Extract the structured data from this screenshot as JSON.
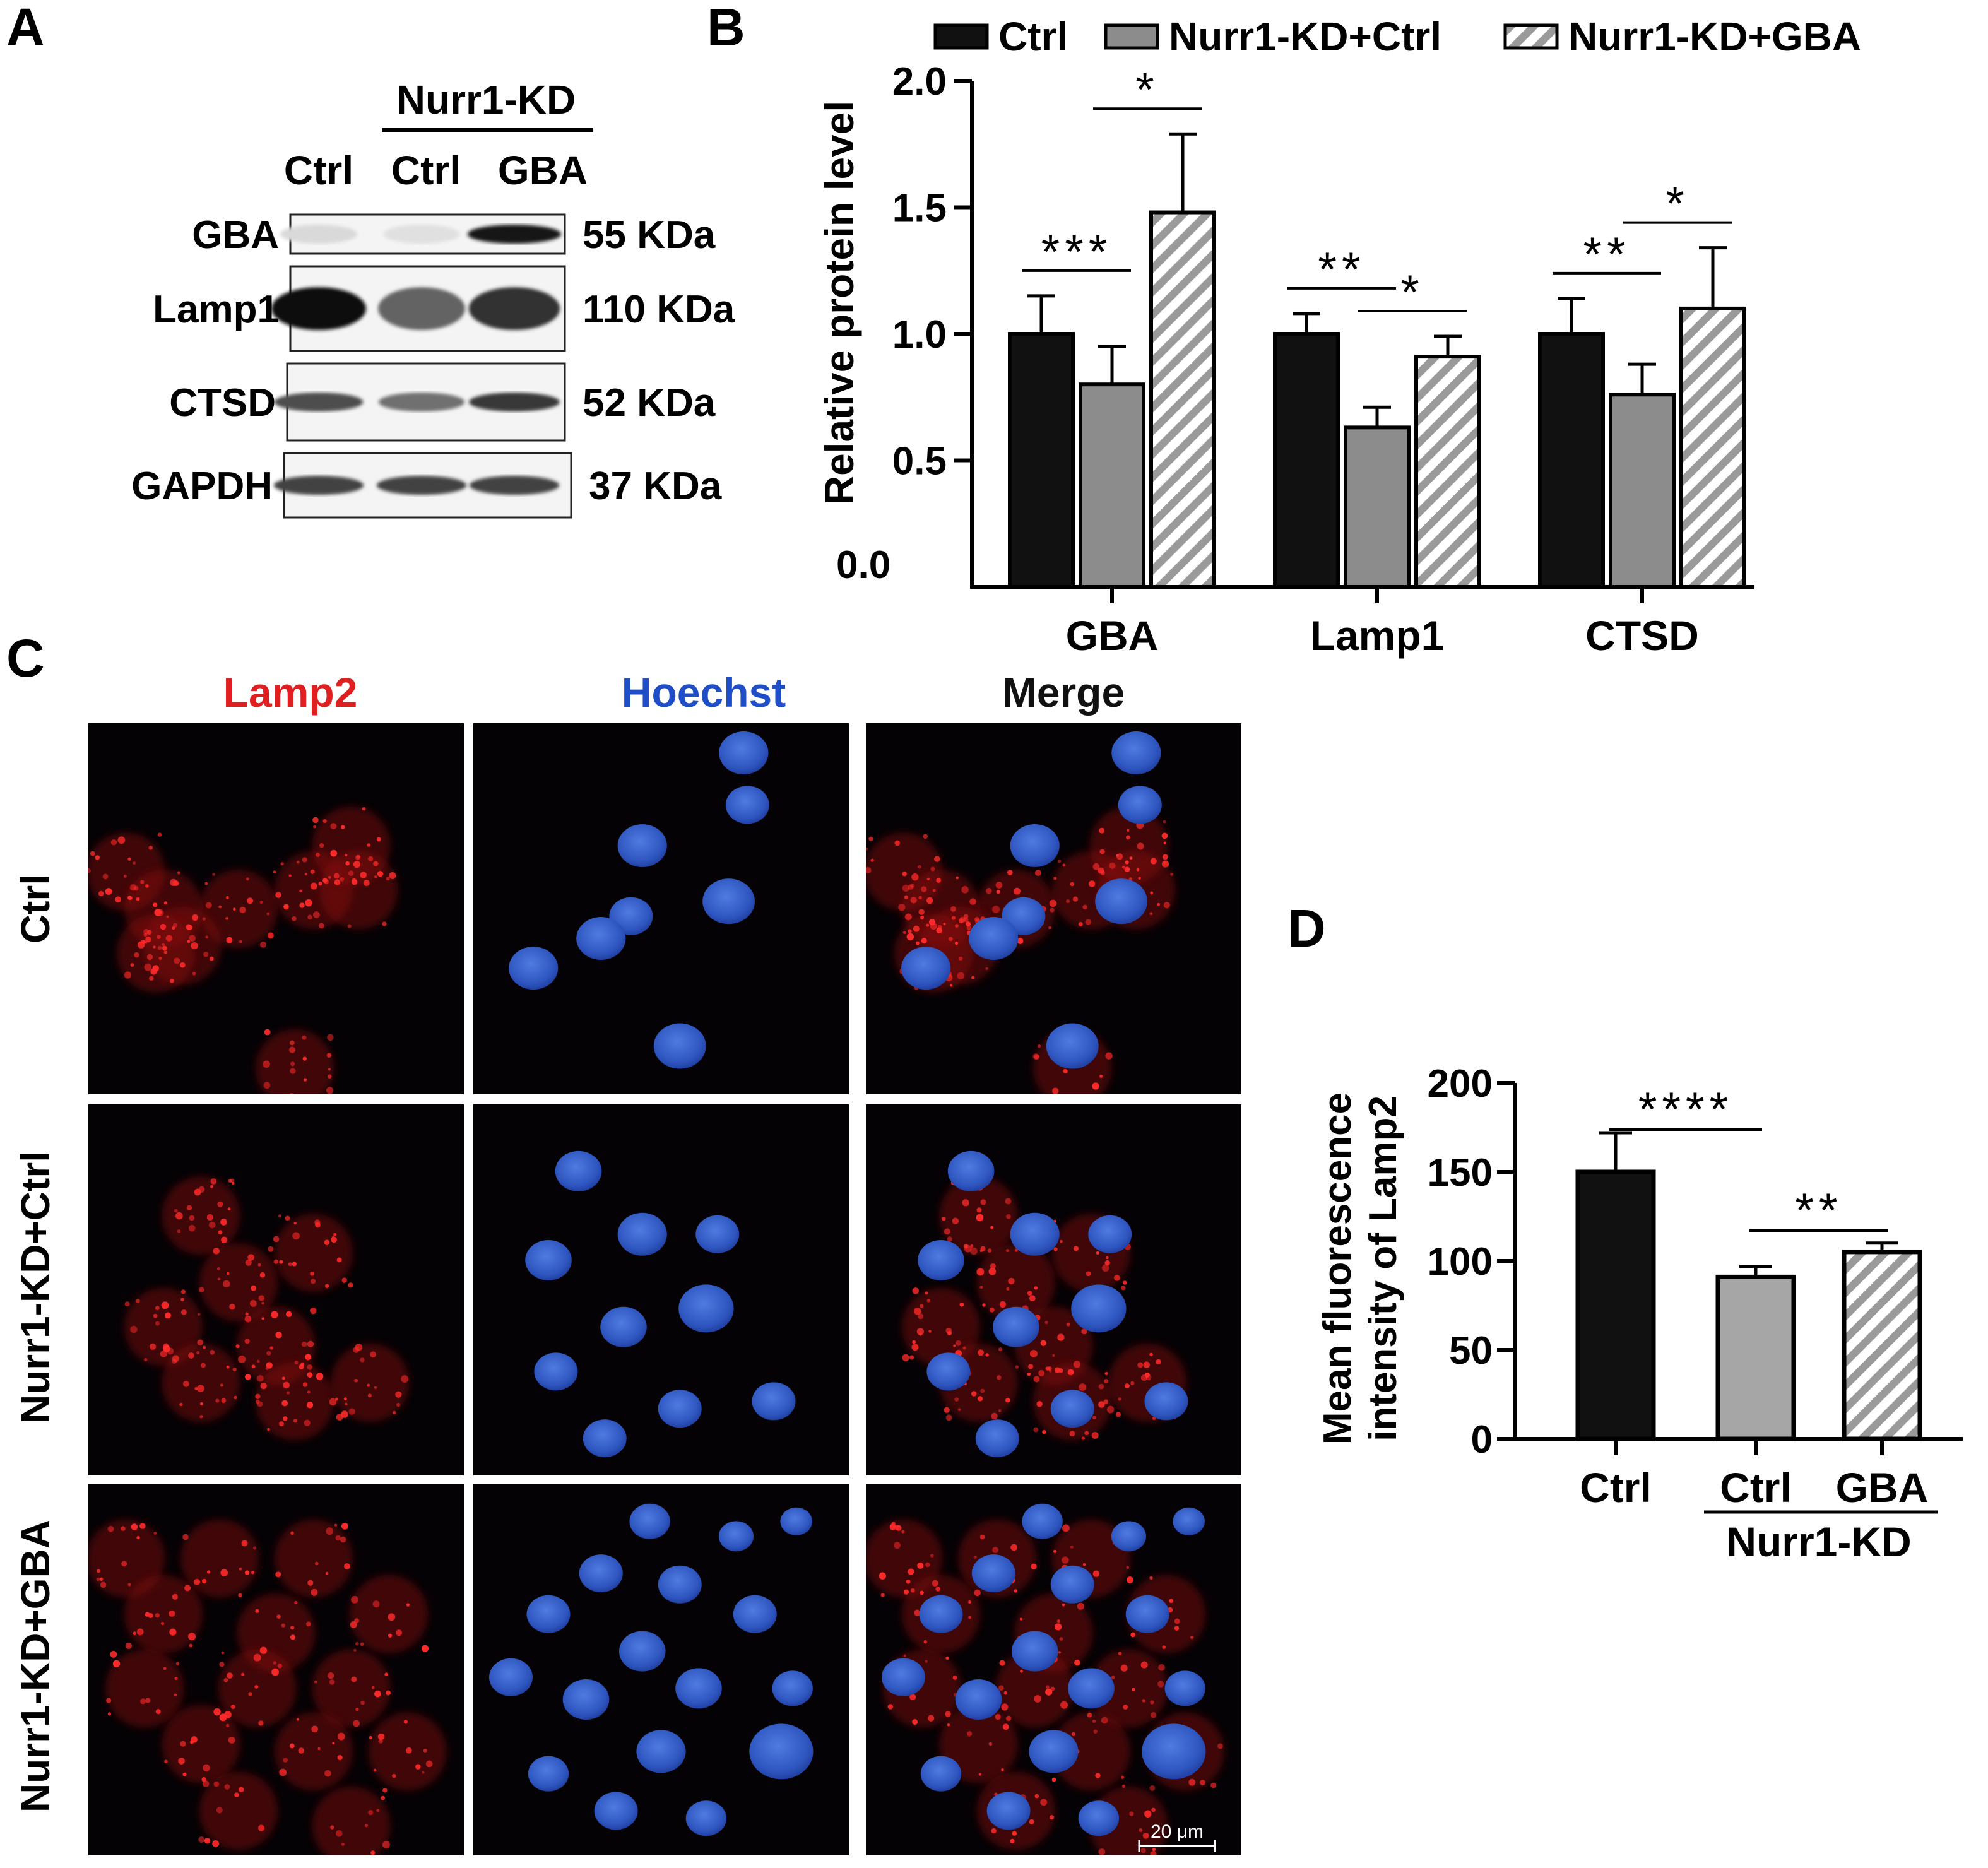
{
  "panel_labels": {
    "a": "A",
    "b": "B",
    "c": "C",
    "d": "D"
  },
  "panel_a": {
    "group_label": "Nurr1-KD",
    "lane_labels": [
      "Ctrl",
      "Ctrl",
      "GBA"
    ],
    "blots": [
      {
        "protein": "GBA",
        "size": "55 KDa",
        "intensity": [
          0.08,
          0.05,
          0.95
        ]
      },
      {
        "protein": "Lamp1",
        "size": "110 KDa",
        "intensity": [
          1.0,
          0.6,
          0.82
        ]
      },
      {
        "protein": "CTSD",
        "size": "52 KDa",
        "intensity": [
          0.7,
          0.55,
          0.8
        ]
      },
      {
        "protein": "GAPDH",
        "size": "37 KDa",
        "intensity": [
          0.75,
          0.75,
          0.75
        ]
      }
    ]
  },
  "chart_data": [
    {
      "type": "bar",
      "panel": "B",
      "categories": [
        "GBA",
        "Lamp1",
        "CTSD"
      ],
      "series": [
        {
          "name": "Ctrl",
          "values": [
            1.0,
            1.0,
            1.0
          ],
          "errors": [
            0.15,
            0.08,
            0.14
          ],
          "fill": "#111111"
        },
        {
          "name": "Nurr1-KD+Ctrl",
          "values": [
            0.8,
            0.63,
            0.76
          ],
          "errors": [
            0.15,
            0.08,
            0.12
          ],
          "fill": "#8c8c8c"
        },
        {
          "name": "Nurr1-KD+GBA",
          "values": [
            1.48,
            0.91,
            1.1
          ],
          "errors": [
            0.31,
            0.08,
            0.24
          ],
          "fill": "hatch"
        }
      ],
      "ylabel": "Relative protein level",
      "ylim": [
        0,
        2.0
      ],
      "yticks": [
        "0.0",
        "0.5",
        "1.0",
        "1.5",
        "2.0"
      ],
      "legend_position": "top",
      "significance": [
        {
          "category": "GBA",
          "between": [
            "Ctrl",
            "Nurr1-KD+Ctrl"
          ],
          "label": "***"
        },
        {
          "category": "GBA",
          "between": [
            "Nurr1-KD+Ctrl",
            "Nurr1-KD+GBA"
          ],
          "label": "*"
        },
        {
          "category": "Lamp1",
          "between": [
            "Ctrl",
            "Nurr1-KD+Ctrl"
          ],
          "label": "**"
        },
        {
          "category": "Lamp1",
          "between": [
            "Nurr1-KD+Ctrl",
            "Nurr1-KD+GBA"
          ],
          "label": "*"
        },
        {
          "category": "CTSD",
          "between": [
            "Ctrl",
            "Nurr1-KD+Ctrl"
          ],
          "label": "**"
        },
        {
          "category": "CTSD",
          "between": [
            "Nurr1-KD+Ctrl",
            "Nurr1-KD+GBA"
          ],
          "label": "*"
        }
      ]
    },
    {
      "type": "bar",
      "panel": "D",
      "categories": [
        "Ctrl",
        "Ctrl",
        "GBA"
      ],
      "group_label": "Nurr1-KD",
      "values": [
        150,
        91,
        105
      ],
      "errors": [
        22,
        6,
        5
      ],
      "fills": [
        "#111111",
        "#a6a6a6",
        "hatch"
      ],
      "ylabel_lines": [
        "Mean fluorescence",
        "intensity of Lamp2"
      ],
      "ylim": [
        0,
        200
      ],
      "yticks": [
        "0",
        "50",
        "100",
        "150",
        "200"
      ],
      "significance": [
        {
          "between": [
            0,
            1
          ],
          "label": "****"
        },
        {
          "between": [
            1,
            2
          ],
          "label": "**"
        }
      ]
    }
  ],
  "panel_c": {
    "column_titles": [
      {
        "text": "Lamp2",
        "color": "#e02020"
      },
      {
        "text": "Hoechst",
        "color": "#1e4fc8"
      },
      {
        "text": "Merge",
        "color": "#111111"
      }
    ],
    "row_labels": [
      "Ctrl",
      "Nurr1-KD+Ctrl",
      "Nurr1-KD+GBA"
    ],
    "scale_bar": "20 μm"
  }
}
